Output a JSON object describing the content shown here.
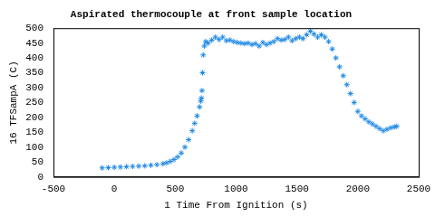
{
  "chart_data": {
    "type": "scatter",
    "title": "Aspirated thermocouple at front sample location",
    "x_label": "1 Time From Ignition (s)",
    "y_label": "16 TFSampA (C)",
    "x": [
      -100,
      -50,
      0,
      50,
      100,
      150,
      200,
      250,
      300,
      350,
      400,
      430,
      460,
      490,
      520,
      550,
      580,
      610,
      640,
      660,
      680,
      700,
      710,
      715,
      720,
      725,
      730,
      740,
      750,
      770,
      800,
      830,
      860,
      890,
      920,
      950,
      980,
      1010,
      1040,
      1070,
      1100,
      1130,
      1160,
      1190,
      1220,
      1250,
      1280,
      1310,
      1340,
      1370,
      1400,
      1430,
      1460,
      1490,
      1520,
      1550,
      1580,
      1610,
      1640,
      1670,
      1700,
      1730,
      1760,
      1790,
      1820,
      1850,
      1880,
      1910,
      1940,
      1970,
      2000,
      2030,
      2060,
      2090,
      2120,
      2150,
      2180,
      2210,
      2240,
      2270,
      2300,
      2320
    ],
    "values": [
      30,
      31,
      32,
      33,
      34,
      35,
      36,
      37,
      39,
      41,
      44,
      47,
      52,
      58,
      67,
      80,
      100,
      125,
      155,
      180,
      205,
      235,
      255,
      265,
      290,
      350,
      410,
      440,
      455,
      450,
      460,
      470,
      462,
      470,
      458,
      460,
      455,
      452,
      450,
      448,
      450,
      445,
      448,
      440,
      452,
      445,
      450,
      455,
      465,
      460,
      462,
      470,
      458,
      465,
      470,
      465,
      478,
      490,
      480,
      470,
      478,
      470,
      455,
      430,
      400,
      370,
      340,
      310,
      280,
      250,
      220,
      205,
      195,
      185,
      178,
      170,
      162,
      155,
      160,
      165,
      168,
      170
    ],
    "color": "#1e88e5",
    "marker": "star",
    "xlim": [
      -500,
      2500
    ],
    "xticks": [
      -500,
      0,
      500,
      1000,
      1500,
      2000,
      2500
    ],
    "ylim": [
      0,
      500
    ],
    "yticks": [
      0,
      50,
      100,
      150,
      200,
      250,
      300,
      350,
      400,
      450,
      500
    ],
    "grid": false
  }
}
